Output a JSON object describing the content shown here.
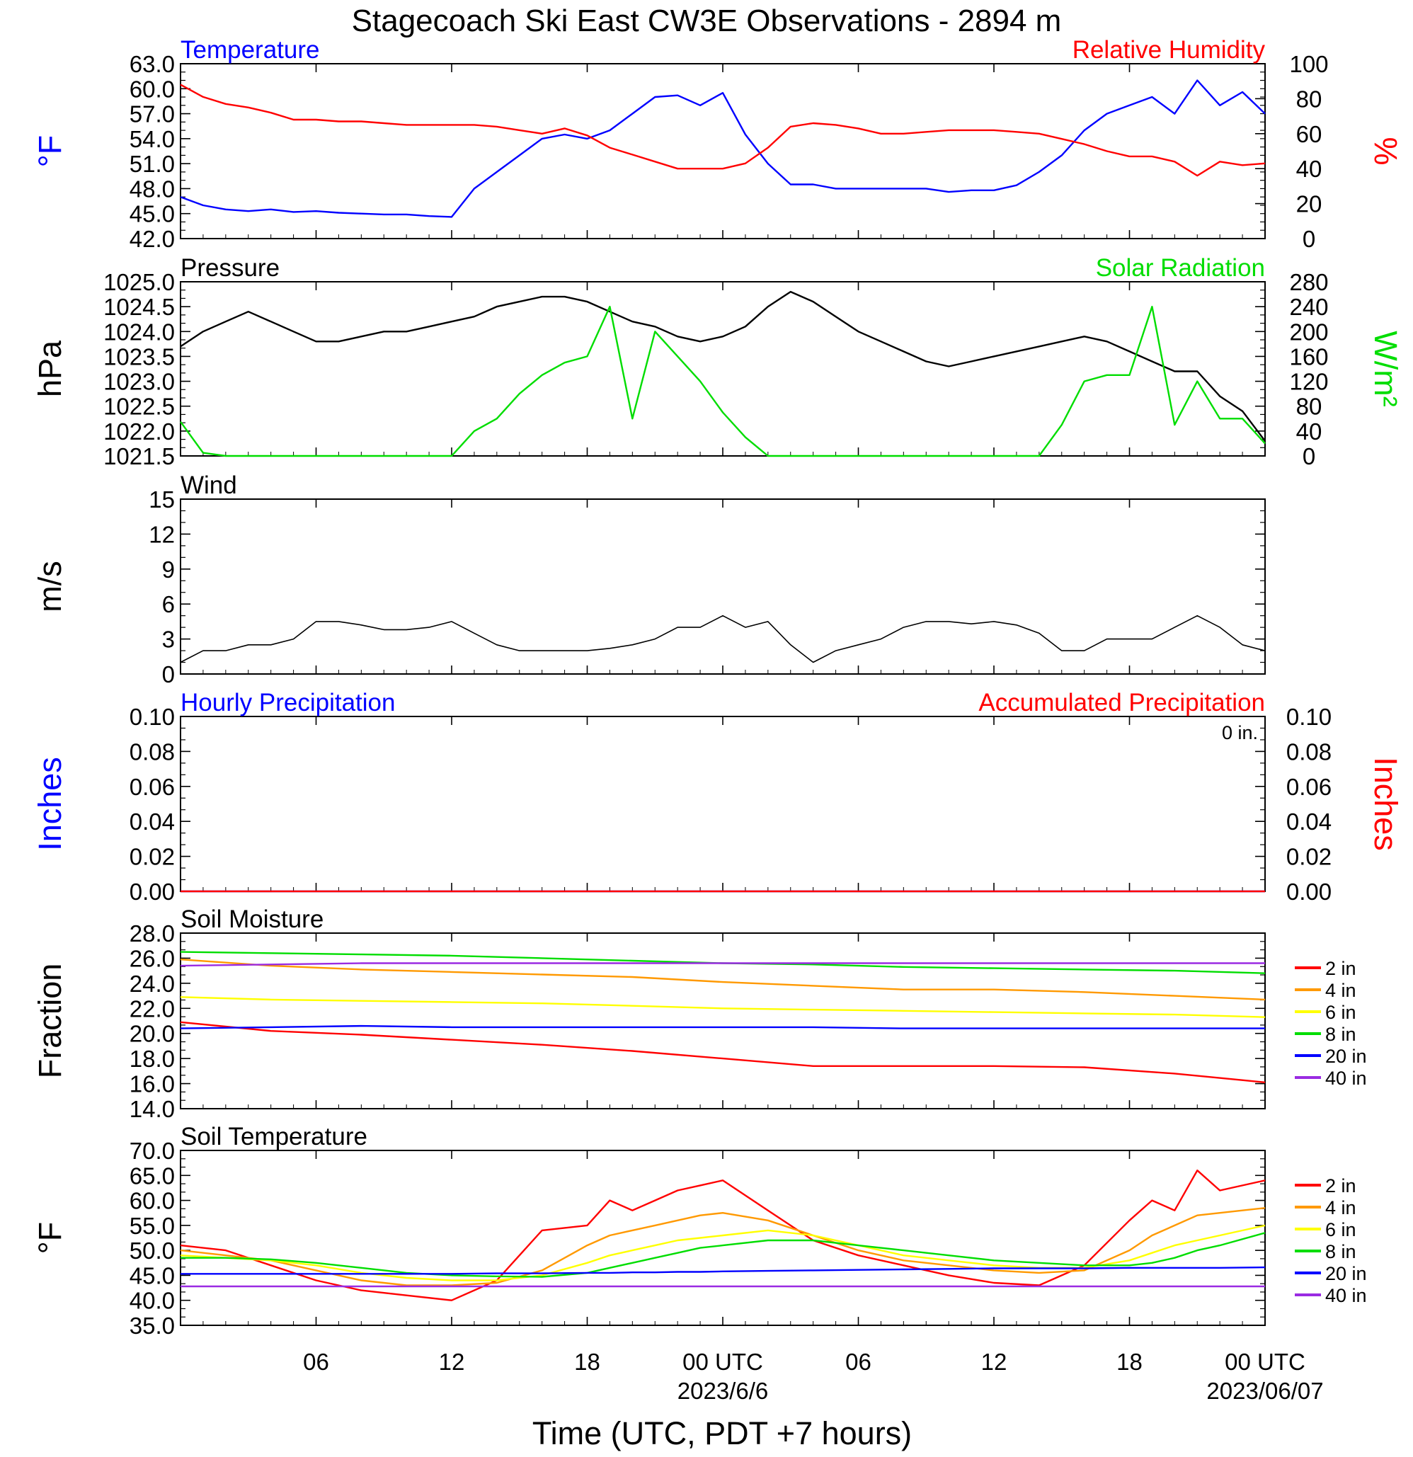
{
  "page": {
    "title": "Stagecoach Ski East CW3E Observations - 2894 m"
  },
  "time_axis": {
    "tick_labels": [
      "06",
      "12",
      "18",
      "00 UTC",
      "06",
      "12",
      "18",
      "00 UTC"
    ],
    "date_labels": [
      "2023/6/6",
      "2023/06/07"
    ],
    "xlabel": "Time (UTC, PDT +7 hours)"
  },
  "colors": {
    "red": "#ff0000",
    "orange": "#ff9900",
    "yellow": "#ffff00",
    "green": "#00dd00",
    "blue": "#0000ff",
    "purple": "#9a2be2",
    "black": "#000000"
  },
  "chart_data": [
    {
      "type": "line",
      "title_left": "Temperature",
      "title_right": "Relative Humidity",
      "ylabel_left": "°F",
      "ylabel_right": "%",
      "ylim_left": [
        42,
        63
      ],
      "yticks_left": [
        "63.0",
        "60.0",
        "57.0",
        "54.0",
        "51.0",
        "48.0",
        "45.0",
        "42.0"
      ],
      "ylim_right": [
        0,
        100
      ],
      "yticks_right": [
        "100",
        "80",
        "60",
        "40",
        "20",
        "0"
      ],
      "x_hours": [
        0,
        1,
        2,
        3,
        4,
        5,
        6,
        7,
        8,
        9,
        10,
        11,
        12,
        13,
        14,
        15,
        16,
        17,
        18,
        19,
        20,
        21,
        22,
        23,
        24,
        25,
        26,
        27,
        28,
        29,
        30,
        31,
        32,
        33,
        34,
        35,
        36,
        37,
        38,
        39,
        40,
        41,
        42,
        43,
        44,
        45,
        46,
        47,
        48
      ],
      "series": [
        {
          "name": "Temperature",
          "axis": "left",
          "color": "#0000ff",
          "values": [
            47,
            46,
            45.5,
            45.3,
            45.5,
            45.2,
            45.3,
            45.1,
            45,
            44.9,
            44.9,
            44.7,
            44.6,
            48,
            50,
            52,
            54,
            54.5,
            54,
            55,
            57,
            59,
            59.2,
            58,
            59.5,
            54.5,
            51,
            48.5,
            48.5,
            48,
            48,
            48,
            48,
            48,
            47.6,
            47.8,
            47.8,
            48.4,
            50,
            52,
            55,
            57,
            58,
            59,
            57,
            61,
            58,
            59.6,
            57
          ]
        },
        {
          "name": "Relative Humidity",
          "axis": "right",
          "color": "#ff0000",
          "values": [
            88,
            81,
            77,
            75,
            72,
            68,
            68,
            67,
            67,
            66,
            65,
            65,
            65,
            65,
            64,
            62,
            60,
            63,
            59,
            52,
            48,
            44,
            40,
            40,
            40,
            43,
            52,
            64,
            66,
            65,
            63,
            60,
            60,
            61,
            62,
            62,
            62,
            61,
            60,
            57,
            54,
            50,
            47,
            47,
            44,
            36,
            44,
            42,
            43
          ]
        }
      ]
    },
    {
      "type": "line",
      "title_left": "Pressure",
      "title_right": "Solar Radiation",
      "ylabel_left": "hPa",
      "ylabel_right": "W/m²",
      "ylim_left": [
        1021.5,
        1025.0
      ],
      "yticks_left": [
        "1025.0",
        "1024.5",
        "1024.0",
        "1023.5",
        "1023.0",
        "1022.5",
        "1022.0",
        "1021.5"
      ],
      "ylim_right": [
        0,
        280
      ],
      "yticks_right": [
        "280",
        "240",
        "200",
        "160",
        "120",
        "80",
        "40",
        "0"
      ],
      "x_hours": [
        0,
        1,
        2,
        3,
        4,
        5,
        6,
        7,
        8,
        9,
        10,
        11,
        12,
        13,
        14,
        15,
        16,
        17,
        18,
        19,
        20,
        21,
        22,
        23,
        24,
        25,
        26,
        27,
        28,
        29,
        30,
        31,
        32,
        33,
        34,
        35,
        36,
        37,
        38,
        39,
        40,
        41,
        42,
        43,
        44,
        45,
        46,
        47,
        48
      ],
      "series": [
        {
          "name": "Pressure",
          "axis": "left",
          "color": "#000000",
          "values": [
            1023.7,
            1024.0,
            1024.2,
            1024.4,
            1024.2,
            1024.0,
            1023.8,
            1023.8,
            1023.9,
            1024.0,
            1024.0,
            1024.1,
            1024.2,
            1024.3,
            1024.5,
            1024.6,
            1024.7,
            1024.7,
            1024.6,
            1024.4,
            1024.2,
            1024.1,
            1023.9,
            1023.8,
            1023.9,
            1024.1,
            1024.5,
            1024.8,
            1024.6,
            1024.3,
            1024.0,
            1023.8,
            1023.6,
            1023.4,
            1023.3,
            1023.4,
            1023.5,
            1023.6,
            1023.7,
            1023.8,
            1023.9,
            1023.8,
            1023.6,
            1023.4,
            1023.2,
            1023.2,
            1022.7,
            1022.4,
            1021.8
          ]
        },
        {
          "name": "Solar Radiation",
          "axis": "right",
          "color": "#00dd00",
          "values": [
            55,
            5,
            0,
            0,
            0,
            0,
            0,
            0,
            0,
            0,
            0,
            0,
            0,
            40,
            60,
            100,
            130,
            150,
            160,
            240,
            60,
            200,
            160,
            120,
            70,
            30,
            0,
            0,
            0,
            0,
            0,
            0,
            0,
            0,
            0,
            0,
            0,
            0,
            0,
            50,
            120,
            130,
            130,
            240,
            50,
            120,
            60,
            60,
            20
          ]
        }
      ]
    },
    {
      "type": "line",
      "title_left": "Wind",
      "ylabel_left": "m/s",
      "ylim_left": [
        0,
        15
      ],
      "yticks_left": [
        "15",
        "12",
        "9",
        "6",
        "3",
        "0"
      ],
      "x_hours": [
        0,
        1,
        2,
        3,
        4,
        5,
        6,
        7,
        8,
        9,
        10,
        11,
        12,
        13,
        14,
        15,
        16,
        17,
        18,
        19,
        20,
        21,
        22,
        23,
        24,
        25,
        26,
        27,
        28,
        29,
        30,
        31,
        32,
        33,
        34,
        35,
        36,
        37,
        38,
        39,
        40,
        41,
        42,
        43,
        44,
        45,
        46,
        47,
        48
      ],
      "series": [
        {
          "name": "Wind",
          "axis": "left",
          "color": "#000000",
          "values": [
            1,
            2,
            2,
            2.5,
            2.5,
            3,
            4.5,
            4.5,
            4.2,
            3.8,
            3.8,
            4,
            4.5,
            3.5,
            2.5,
            2,
            2,
            2,
            2,
            2.2,
            2.5,
            3,
            4,
            4,
            5,
            4,
            4.5,
            2.5,
            1,
            2,
            2.5,
            3,
            4,
            4.5,
            4.5,
            4.3,
            4.5,
            4.2,
            3.5,
            2,
            2,
            3,
            3,
            3,
            4,
            5,
            4,
            2.5,
            2
          ]
        }
      ]
    },
    {
      "type": "line",
      "title_left": "Hourly Precipitation",
      "title_right": "Accumulated Precipitation",
      "annotation": "0 in.",
      "ylabel_left": "Inches",
      "ylabel_right": "Inches",
      "ylim_left": [
        0,
        0.1
      ],
      "yticks_left": [
        "0.10",
        "0.08",
        "0.06",
        "0.04",
        "0.02",
        "0.00"
      ],
      "ylim_right": [
        0,
        0.1
      ],
      "yticks_right": [
        "0.10",
        "0.08",
        "0.06",
        "0.04",
        "0.02",
        "0.00"
      ],
      "x_hours": [
        0,
        48
      ],
      "series": [
        {
          "name": "Hourly Precipitation",
          "axis": "left",
          "color": "#0000ff",
          "values": [
            0,
            0
          ]
        },
        {
          "name": "Accumulated Precipitation",
          "axis": "right",
          "color": "#ff0000",
          "values": [
            0,
            0
          ]
        }
      ]
    },
    {
      "type": "line",
      "title_left": "Soil Moisture",
      "ylabel_left": "Fraction",
      "ylim_left": [
        14,
        28
      ],
      "yticks_left": [
        "28.0",
        "26.0",
        "24.0",
        "22.0",
        "20.0",
        "18.0",
        "16.0",
        "14.0"
      ],
      "legend_position": "right",
      "x_hours": [
        0,
        4,
        8,
        12,
        16,
        20,
        24,
        28,
        32,
        36,
        40,
        44,
        48
      ],
      "series": [
        {
          "name": "2 in",
          "axis": "left",
          "color": "#ff0000",
          "values": [
            20.9,
            20.2,
            19.9,
            19.5,
            19.1,
            18.6,
            18.0,
            17.4,
            17.4,
            17.4,
            17.3,
            16.8,
            16.1
          ]
        },
        {
          "name": "4 in",
          "axis": "left",
          "color": "#ff9900",
          "values": [
            25.9,
            25.4,
            25.1,
            24.9,
            24.7,
            24.5,
            24.1,
            23.8,
            23.5,
            23.5,
            23.3,
            23.0,
            22.7
          ]
        },
        {
          "name": "6 in",
          "axis": "left",
          "color": "#ffff00",
          "values": [
            22.9,
            22.7,
            22.6,
            22.5,
            22.4,
            22.2,
            22.0,
            21.9,
            21.8,
            21.7,
            21.6,
            21.5,
            21.3
          ]
        },
        {
          "name": "8 in",
          "axis": "left",
          "color": "#00dd00",
          "values": [
            26.5,
            26.4,
            26.3,
            26.2,
            26.0,
            25.8,
            25.6,
            25.5,
            25.3,
            25.2,
            25.1,
            25.0,
            24.8
          ]
        },
        {
          "name": "20 in",
          "axis": "left",
          "color": "#0000ff",
          "values": [
            20.4,
            20.5,
            20.6,
            20.5,
            20.5,
            20.5,
            20.5,
            20.5,
            20.4,
            20.4,
            20.4,
            20.4,
            20.4
          ]
        },
        {
          "name": "40 in",
          "axis": "left",
          "color": "#9a2be2",
          "values": [
            25.4,
            25.5,
            25.6,
            25.6,
            25.6,
            25.6,
            25.6,
            25.6,
            25.6,
            25.6,
            25.6,
            25.6,
            25.6
          ]
        }
      ]
    },
    {
      "type": "line",
      "title_left": "Soil Temperature",
      "ylabel_left": "°F",
      "ylim_left": [
        35,
        70
      ],
      "yticks_left": [
        "70.0",
        "65.0",
        "60.0",
        "55.0",
        "50.0",
        "45.0",
        "40.0",
        "35.0"
      ],
      "legend_position": "right",
      "x_hours": [
        0,
        2,
        4,
        6,
        8,
        10,
        12,
        14,
        16,
        18,
        19,
        20,
        21,
        22,
        23,
        24,
        26,
        28,
        30,
        32,
        34,
        36,
        38,
        40,
        42,
        43,
        44,
        45,
        46,
        48
      ],
      "series": [
        {
          "name": "2 in",
          "axis": "left",
          "color": "#ff0000",
          "values": [
            51,
            50,
            47,
            44,
            42,
            41,
            40,
            44,
            54,
            55,
            60,
            58,
            60,
            62,
            63,
            64,
            58,
            52,
            49,
            47,
            45,
            43.5,
            43,
            47,
            56,
            60,
            58,
            66,
            62,
            64
          ]
        },
        {
          "name": "4 in",
          "axis": "left",
          "color": "#ff9900",
          "values": [
            50,
            49,
            48,
            46,
            44,
            43,
            43,
            43.5,
            46,
            51,
            53,
            54,
            55,
            56,
            57,
            57.5,
            56,
            53,
            50,
            48,
            47,
            46,
            45.5,
            46,
            50,
            53,
            55,
            57,
            57.5,
            58.5
          ]
        },
        {
          "name": "6 in",
          "axis": "left",
          "color": "#ffff00",
          "values": [
            49,
            48.5,
            48,
            47,
            45.5,
            44.5,
            44,
            44,
            45,
            47.5,
            49,
            50,
            51,
            52,
            52.5,
            53,
            54,
            53,
            51,
            49,
            48,
            47,
            46.5,
            46.5,
            48,
            49.5,
            51,
            52,
            53,
            55
          ]
        },
        {
          "name": "8 in",
          "axis": "left",
          "color": "#00dd00",
          "values": [
            48.5,
            48.5,
            48.2,
            47.5,
            46.5,
            45.5,
            45,
            44.8,
            44.7,
            45.5,
            46.5,
            47.5,
            48.5,
            49.5,
            50.5,
            51,
            52,
            52,
            51,
            50,
            49,
            48,
            47.5,
            47,
            47,
            47.5,
            48.5,
            50,
            51,
            53.5
          ]
        },
        {
          "name": "20 in",
          "axis": "left",
          "color": "#0000ff",
          "values": [
            45.3,
            45.3,
            45.3,
            45.3,
            45.3,
            45.3,
            45.3,
            45.4,
            45.4,
            45.5,
            45.5,
            45.6,
            45.6,
            45.7,
            45.7,
            45.8,
            45.9,
            46,
            46.1,
            46.2,
            46.3,
            46.4,
            46.4,
            46.4,
            46.5,
            46.5,
            46.5,
            46.5,
            46.5,
            46.6
          ]
        },
        {
          "name": "40 in",
          "axis": "left",
          "color": "#9a2be2",
          "values": [
            42.8,
            42.8,
            42.8,
            42.8,
            42.8,
            42.8,
            42.8,
            42.8,
            42.8,
            42.8,
            42.8,
            42.8,
            42.8,
            42.8,
            42.8,
            42.8,
            42.8,
            42.8,
            42.8,
            42.8,
            42.8,
            42.8,
            42.8,
            42.8,
            42.8,
            42.8,
            42.8,
            42.8,
            42.8,
            42.8
          ]
        }
      ]
    }
  ]
}
